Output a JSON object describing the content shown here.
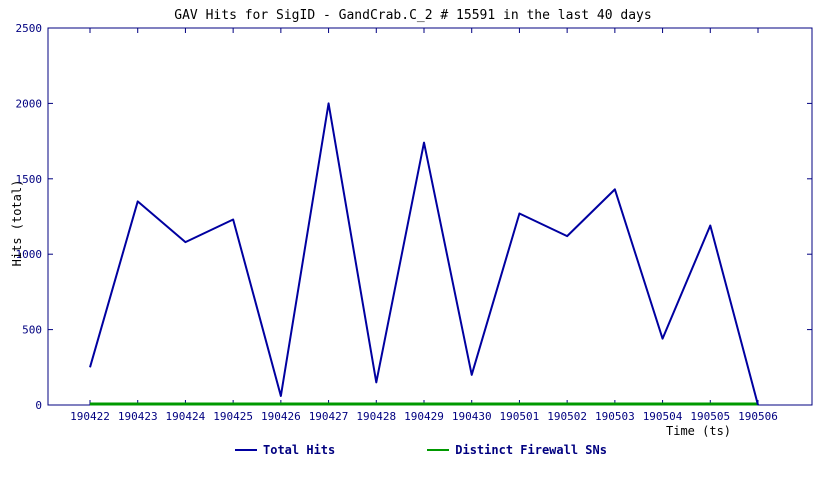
{
  "chart_data": {
    "type": "line",
    "title": "GAV Hits for SigID - GandCrab.C_2 # 15591 in the last 40 days",
    "xlabel": "Time (ts)",
    "ylabel": "Hits (total)",
    "ylim": [
      0,
      2500
    ],
    "yticks": [
      0,
      500,
      1000,
      1500,
      2000,
      2500
    ],
    "grid": false,
    "legend_position": "bottom",
    "categories": [
      "190422",
      "190423",
      "190424",
      "190425",
      "190426",
      "190427",
      "190428",
      "190429",
      "190430",
      "190501",
      "190502",
      "190503",
      "190504",
      "190505",
      "190506"
    ],
    "series": [
      {
        "name": "Total Hits",
        "color": "#0000A0",
        "width": 2,
        "values": [
          250,
          1350,
          1080,
          1230,
          60,
          2000,
          150,
          1740,
          200,
          1270,
          1120,
          1430,
          440,
          1190,
          0
        ]
      },
      {
        "name": "Distinct Firewall SNs",
        "color": "#009900",
        "width": 3,
        "values": [
          0,
          0,
          0,
          0,
          0,
          0,
          0,
          0,
          0,
          0,
          0,
          0,
          0,
          0,
          0
        ]
      }
    ]
  },
  "colors": {
    "axis": "#000080",
    "tick_text": "#000080",
    "title_text": "#000000",
    "background": "#ffffff"
  }
}
